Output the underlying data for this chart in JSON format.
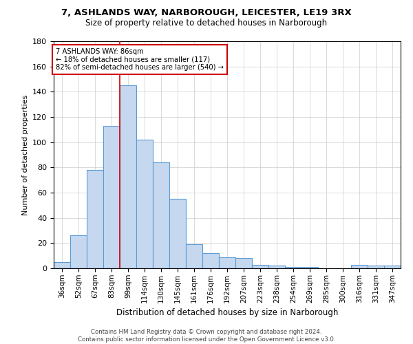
{
  "title1": "7, ASHLANDS WAY, NARBOROUGH, LEICESTER, LE19 3RX",
  "title2": "Size of property relative to detached houses in Narborough",
  "xlabel": "Distribution of detached houses by size in Narborough",
  "ylabel": "Number of detached properties",
  "categories": [
    "36sqm",
    "52sqm",
    "67sqm",
    "83sqm",
    "99sqm",
    "114sqm",
    "130sqm",
    "145sqm",
    "161sqm",
    "176sqm",
    "192sqm",
    "207sqm",
    "223sqm",
    "238sqm",
    "254sqm",
    "269sqm",
    "285sqm",
    "300sqm",
    "316sqm",
    "331sqm",
    "347sqm"
  ],
  "values": [
    5,
    26,
    78,
    113,
    145,
    102,
    84,
    55,
    19,
    12,
    9,
    8,
    3,
    2,
    1,
    1,
    0,
    0,
    3,
    2,
    2
  ],
  "bar_color": "#c5d8f0",
  "bar_edge_color": "#5b9bd5",
  "vline_x": 3.5,
  "annotation_text_line1": "7 ASHLANDS WAY: 86sqm",
  "annotation_text_line2": "← 18% of detached houses are smaller (117)",
  "annotation_text_line3": "82% of semi-detached houses are larger (540) →",
  "annotation_box_color": "#ffffff",
  "annotation_border_color": "#cc0000",
  "vline_color": "#cc0000",
  "ylim": [
    0,
    180
  ],
  "yticks": [
    0,
    20,
    40,
    60,
    80,
    100,
    120,
    140,
    160,
    180
  ],
  "footer1": "Contains HM Land Registry data © Crown copyright and database right 2024.",
  "footer2": "Contains public sector information licensed under the Open Government Licence v3.0.",
  "background_color": "#ffffff",
  "grid_color": "#cccccc"
}
